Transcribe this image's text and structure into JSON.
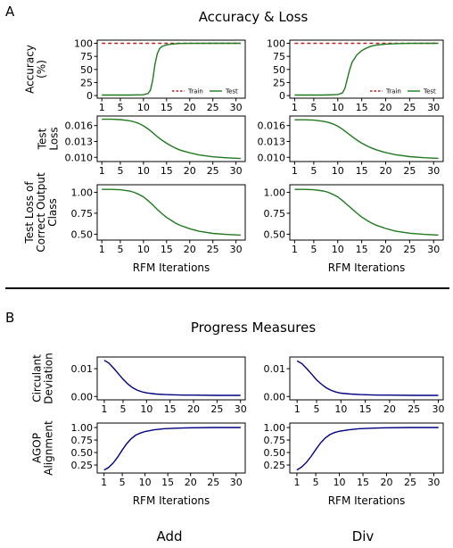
{
  "panel_a": {
    "letter": "A",
    "title": "Accuracy & Loss"
  },
  "panel_b": {
    "letter": "B",
    "title": "Progress Measures"
  },
  "columns": [
    "Add",
    "Div"
  ],
  "colors": {
    "train": "#b22222",
    "test": "#1f7a1f",
    "progress": "#000080",
    "axis": "#000000"
  },
  "chart_data": [
    {
      "id": "accuracy",
      "type": "line",
      "ylabel_lines": [
        "Accuracy",
        "(%)"
      ],
      "xlim": [
        0,
        32
      ],
      "ylim": [
        -5,
        106
      ],
      "xticks": [
        1,
        5,
        10,
        15,
        20,
        25,
        30
      ],
      "yticks": [
        0,
        25,
        50,
        75,
        100
      ],
      "ytick_labels": [
        "0",
        "25",
        "50",
        "75",
        "100"
      ],
      "legend": {
        "position": "lower-right",
        "entries": [
          "Train",
          "Test"
        ]
      },
      "columns": [
        {
          "name": "Add",
          "series": [
            {
              "name": "Train",
              "style": "dashed",
              "color": "#b22222",
              "x": [
                1,
                31
              ],
              "y": [
                100,
                100
              ]
            },
            {
              "name": "Test",
              "style": "solid",
              "color": "#1f7a1f",
              "x": [
                1,
                4,
                7,
                10,
                11,
                11.5,
                12,
                12.5,
                13,
                13.5,
                14,
                15,
                16,
                17,
                18,
                20,
                25,
                31
              ],
              "y": [
                1,
                1,
                1,
                1.5,
                4,
                10,
                30,
                60,
                80,
                90,
                94,
                97,
                98.5,
                99.2,
                99.6,
                99.8,
                100,
                100
              ]
            }
          ]
        },
        {
          "name": "Div",
          "series": [
            {
              "name": "Train",
              "style": "dashed",
              "color": "#b22222",
              "x": [
                1,
                31
              ],
              "y": [
                100,
                100
              ]
            },
            {
              "name": "Test",
              "style": "solid",
              "color": "#1f7a1f",
              "x": [
                1,
                4,
                7,
                10,
                11,
                11.5,
                12,
                12.5,
                13,
                14,
                15,
                16,
                17,
                18,
                20,
                22,
                25,
                31
              ],
              "y": [
                1,
                1,
                1,
                2,
                5,
                14,
                32,
                50,
                64,
                78,
                86,
                91,
                94.5,
                96.5,
                98.5,
                99.3,
                99.8,
                100
              ]
            }
          ]
        }
      ]
    },
    {
      "id": "test-loss",
      "type": "line",
      "ylabel_lines": [
        "Test",
        "Loss"
      ],
      "xlim": [
        0,
        32
      ],
      "ylim": [
        0.0092,
        0.0178
      ],
      "xticks": [
        1,
        5,
        10,
        15,
        20,
        25,
        30
      ],
      "yticks": [
        0.01,
        0.013,
        0.016
      ],
      "ytick_labels": [
        "0.010",
        "0.013",
        "0.016"
      ],
      "columns": [
        {
          "name": "Add",
          "series": [
            {
              "name": "Test",
              "style": "solid",
              "color": "#1f7a1f",
              "x": [
                1,
                3,
                5,
                7,
                8,
                9,
                10,
                11,
                12,
                13,
                14,
                15,
                16,
                17,
                18,
                20,
                22,
                25,
                28,
                31
              ],
              "y": [
                0.0172,
                0.0172,
                0.01712,
                0.0169,
                0.0167,
                0.0164,
                0.01595,
                0.01535,
                0.01465,
                0.0139,
                0.01325,
                0.01265,
                0.01215,
                0.0117,
                0.01135,
                0.01085,
                0.01045,
                0.0101,
                0.0099,
                0.00978
              ]
            }
          ]
        },
        {
          "name": "Div",
          "series": [
            {
              "name": "Test",
              "style": "solid",
              "color": "#1f7a1f",
              "x": [
                1,
                3,
                5,
                7,
                8,
                9,
                10,
                11,
                12,
                13,
                14,
                15,
                16,
                17,
                18,
                20,
                22,
                25,
                28,
                31
              ],
              "y": [
                0.0171,
                0.0171,
                0.01702,
                0.0168,
                0.0166,
                0.0163,
                0.01588,
                0.0153,
                0.01462,
                0.0139,
                0.01325,
                0.01268,
                0.0122,
                0.01178,
                0.01142,
                0.0109,
                0.0105,
                0.01012,
                0.00992,
                0.0098
              ]
            }
          ]
        }
      ]
    },
    {
      "id": "test-loss-correct",
      "type": "line",
      "ylabel_lines": [
        "Test Loss of",
        "Correct Output",
        "Class"
      ],
      "xlim": [
        0,
        32
      ],
      "ylim": [
        0.43,
        1.09
      ],
      "xticks": [
        1,
        5,
        10,
        15,
        20,
        25,
        30
      ],
      "yticks": [
        0.5,
        0.75,
        1.0
      ],
      "ytick_labels": [
        "0.50",
        "0.75",
        "1.00"
      ],
      "xlabel": "RFM Iterations",
      "columns": [
        {
          "name": "Add",
          "series": [
            {
              "name": "Test",
              "style": "solid",
              "color": "#1f7a1f",
              "x": [
                1,
                3,
                5,
                7,
                8,
                9,
                10,
                11,
                12,
                13,
                14,
                15,
                16,
                17,
                18,
                20,
                22,
                25,
                28,
                31
              ],
              "y": [
                1.035,
                1.035,
                1.03,
                1.015,
                1.0,
                0.975,
                0.945,
                0.9,
                0.85,
                0.795,
                0.745,
                0.7,
                0.665,
                0.63,
                0.605,
                0.565,
                0.535,
                0.51,
                0.497,
                0.49
              ]
            }
          ]
        },
        {
          "name": "Div",
          "series": [
            {
              "name": "Test",
              "style": "solid",
              "color": "#1f7a1f",
              "x": [
                1,
                3,
                5,
                7,
                8,
                9,
                10,
                11,
                12,
                13,
                14,
                15,
                16,
                17,
                18,
                20,
                22,
                25,
                28,
                31
              ],
              "y": [
                1.035,
                1.035,
                1.03,
                1.015,
                1.0,
                0.975,
                0.945,
                0.9,
                0.85,
                0.8,
                0.75,
                0.705,
                0.668,
                0.635,
                0.608,
                0.568,
                0.538,
                0.512,
                0.498,
                0.49
              ]
            }
          ]
        }
      ]
    },
    {
      "id": "circulant-deviation",
      "type": "line",
      "ylabel_lines": [
        "Circulant",
        "Deviation"
      ],
      "xlim": [
        -0.5,
        31
      ],
      "ylim": [
        -0.0012,
        0.0142
      ],
      "xticks": [
        1,
        5,
        10,
        15,
        20,
        25,
        30
      ],
      "yticks": [
        0.0,
        0.01
      ],
      "ytick_labels": [
        "0.00",
        "0.01"
      ],
      "columns": [
        {
          "name": "Add",
          "series": [
            {
              "name": "Circulant Deviation",
              "style": "solid",
              "color": "#000080",
              "x": [
                1,
                2,
                3,
                4,
                5,
                6,
                7,
                8,
                9,
                10,
                12,
                14,
                16,
                18,
                20,
                25,
                30
              ],
              "y": [
                0.013,
                0.012,
                0.0102,
                0.0082,
                0.0062,
                0.0045,
                0.0032,
                0.0023,
                0.0017,
                0.0013,
                0.0009,
                0.0007,
                0.0006,
                0.0005,
                0.0005,
                0.0004,
                0.0004
              ]
            }
          ]
        },
        {
          "name": "Div",
          "series": [
            {
              "name": "Circulant Deviation",
              "style": "solid",
              "color": "#000080",
              "x": [
                1,
                2,
                3,
                4,
                5,
                6,
                7,
                8,
                9,
                10,
                12,
                14,
                16,
                18,
                20,
                25,
                30
              ],
              "y": [
                0.0128,
                0.0118,
                0.01,
                0.008,
                0.006,
                0.0044,
                0.0031,
                0.0022,
                0.0016,
                0.0012,
                0.0009,
                0.0007,
                0.0006,
                0.0005,
                0.0005,
                0.0004,
                0.0004
              ]
            }
          ]
        }
      ]
    },
    {
      "id": "agop-alignment",
      "type": "line",
      "ylabel_lines": [
        "AGOP",
        "Alignment"
      ],
      "xlim": [
        -0.5,
        32
      ],
      "ylim": [
        0.09,
        1.09
      ],
      "xticks": [
        1,
        5,
        10,
        15,
        20,
        25,
        30
      ],
      "yticks": [
        0.25,
        0.5,
        0.75,
        1.0
      ],
      "ytick_labels": [
        "0.25",
        "0.50",
        "0.75",
        "1.00"
      ],
      "xlabel": "RFM Iterations",
      "columns": [
        {
          "name": "Add",
          "series": [
            {
              "name": "AGOP Alignment",
              "style": "solid",
              "color": "#000080",
              "x": [
                1,
                2,
                3,
                4,
                5,
                6,
                7,
                8,
                9,
                10,
                12,
                14,
                16,
                18,
                20,
                25,
                31
              ],
              "y": [
                0.15,
                0.2,
                0.29,
                0.41,
                0.55,
                0.68,
                0.78,
                0.85,
                0.89,
                0.92,
                0.955,
                0.975,
                0.985,
                0.99,
                0.995,
                1.0,
                1.0
              ]
            }
          ]
        },
        {
          "name": "Div",
          "series": [
            {
              "name": "AGOP Alignment",
              "style": "solid",
              "color": "#000080",
              "x": [
                1,
                2,
                3,
                4,
                5,
                6,
                7,
                8,
                9,
                10,
                12,
                14,
                16,
                18,
                20,
                25,
                31
              ],
              "y": [
                0.15,
                0.21,
                0.3,
                0.42,
                0.56,
                0.69,
                0.79,
                0.86,
                0.9,
                0.925,
                0.955,
                0.975,
                0.985,
                0.99,
                0.995,
                1.0,
                1.0
              ]
            }
          ]
        }
      ]
    }
  ]
}
